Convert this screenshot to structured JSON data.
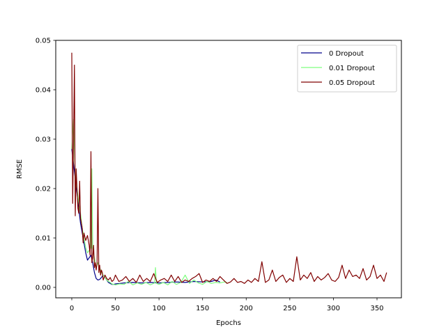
{
  "chart_data": {
    "type": "line",
    "title": "",
    "xlabel": "Epochs",
    "ylabel": "RMSE",
    "xlim": [
      -17,
      375
    ],
    "ylim": [
      -0.0025,
      0.05
    ],
    "xticks": [
      0,
      50,
      100,
      150,
      200,
      250,
      300,
      350
    ],
    "xtick_labels": [
      "0",
      "50",
      "100",
      "150",
      "200",
      "250",
      "300",
      "350"
    ],
    "yticks": [
      0.0,
      0.01,
      0.02,
      0.03,
      0.04,
      0.05
    ],
    "ytick_labels": [
      "0.00",
      "0.01",
      "0.02",
      "0.03",
      "0.04",
      "0.05"
    ],
    "grid": false,
    "legend_position": "upper right",
    "series": [
      {
        "name": "0 Dropout",
        "color": "#00008b",
        "x_range": [
          0,
          170
        ],
        "x": [
          0,
          2,
          4,
          6,
          8,
          10,
          12,
          14,
          16,
          18,
          20,
          22,
          24,
          26,
          28,
          30,
          32,
          34,
          36,
          38,
          40,
          42,
          44,
          46,
          48,
          50,
          55,
          60,
          70,
          80,
          90,
          100,
          110,
          120,
          130,
          140,
          150,
          160,
          165,
          170
        ],
        "values": [
          0.028,
          0.025,
          0.022,
          0.019,
          0.016,
          0.013,
          0.011,
          0.009,
          0.007,
          0.0055,
          0.006,
          0.0065,
          0.005,
          0.003,
          0.0018,
          0.0015,
          0.0016,
          0.002,
          0.0025,
          0.002,
          0.0015,
          0.001,
          0.0008,
          0.0006,
          0.0006,
          0.0007,
          0.0008,
          0.0009,
          0.001,
          0.0009,
          0.001,
          0.0009,
          0.001,
          0.0011,
          0.001,
          0.0012,
          0.0011,
          0.0012,
          0.0015,
          0.0011
        ]
      },
      {
        "name": "0.01 Dropout",
        "color": "#7fff7f",
        "x_range": [
          0,
          178
        ],
        "x": [
          0,
          2,
          4,
          6,
          8,
          10,
          12,
          14,
          16,
          18,
          20,
          22,
          23,
          24,
          26,
          28,
          30,
          32,
          34,
          36,
          38,
          40,
          42,
          44,
          46,
          48,
          50,
          55,
          60,
          65,
          70,
          75,
          80,
          85,
          90,
          95,
          96,
          97,
          100,
          105,
          110,
          115,
          120,
          125,
          130,
          135,
          140,
          145,
          150,
          155,
          160,
          165,
          170,
          175,
          178
        ],
        "values": [
          0.028,
          0.034,
          0.022,
          0.02,
          0.017,
          0.015,
          0.012,
          0.01,
          0.008,
          0.007,
          0.0075,
          0.008,
          0.024,
          0.008,
          0.006,
          0.004,
          0.005,
          0.004,
          0.003,
          0.0025,
          0.002,
          0.0015,
          0.0012,
          0.001,
          0.0007,
          0.0006,
          0.0005,
          0.0007,
          0.0006,
          0.0012,
          0.0005,
          0.0009,
          0.0006,
          0.001,
          0.0005,
          0.0009,
          0.004,
          0.0008,
          0.0006,
          0.001,
          0.0005,
          0.0012,
          0.0006,
          0.001,
          0.0025,
          0.0008,
          0.0015,
          0.0009,
          0.0006,
          0.0012,
          0.0008,
          0.001,
          0.0009,
          0.0011,
          0.001
        ]
      },
      {
        "name": "0.05 Dropout",
        "color": "#800000",
        "x_range": [
          0,
          361
        ],
        "x": [
          0,
          1,
          2,
          3,
          4,
          5,
          6,
          7,
          8,
          9,
          10,
          11,
          12,
          13,
          14,
          16,
          18,
          20,
          21,
          22,
          23,
          24,
          25,
          26,
          27,
          28,
          29,
          30,
          31,
          32,
          33,
          34,
          35,
          36,
          38,
          40,
          42,
          44,
          46,
          48,
          50,
          54,
          58,
          62,
          66,
          70,
          74,
          78,
          82,
          86,
          90,
          94,
          98,
          102,
          106,
          110,
          114,
          118,
          122,
          126,
          130,
          134,
          138,
          142,
          146,
          150,
          154,
          158,
          162,
          166,
          170,
          174,
          178,
          182,
          186,
          190,
          194,
          198,
          202,
          206,
          210,
          214,
          218,
          222,
          226,
          230,
          234,
          238,
          242,
          246,
          250,
          254,
          258,
          262,
          266,
          270,
          274,
          278,
          282,
          286,
          290,
          294,
          298,
          302,
          306,
          310,
          314,
          318,
          322,
          326,
          330,
          334,
          338,
          342,
          346,
          350,
          354,
          358,
          361
        ],
        "values": [
          0.0475,
          0.017,
          0.03,
          0.045,
          0.0145,
          0.024,
          0.02,
          0.016,
          0.015,
          0.0215,
          0.014,
          0.013,
          0.012,
          0.009,
          0.011,
          0.0095,
          0.0105,
          0.0085,
          0.0065,
          0.0275,
          0.005,
          0.006,
          0.0085,
          0.004,
          0.005,
          0.0035,
          0.0048,
          0.02,
          0.003,
          0.0045,
          0.0025,
          0.0035,
          0.003,
          0.0015,
          0.0025,
          0.0018,
          0.0015,
          0.002,
          0.0012,
          0.0015,
          0.0025,
          0.0012,
          0.0015,
          0.0022,
          0.0012,
          0.0018,
          0.001,
          0.0025,
          0.0012,
          0.0018,
          0.0012,
          0.0028,
          0.001,
          0.0015,
          0.0018,
          0.0012,
          0.0025,
          0.0012,
          0.0022,
          0.001,
          0.0015,
          0.0012,
          0.0018,
          0.0022,
          0.0028,
          0.001,
          0.0015,
          0.0012,
          0.0018,
          0.0012,
          0.0022,
          0.0015,
          0.0008,
          0.0011,
          0.0018,
          0.001,
          0.0012,
          0.0008,
          0.0015,
          0.001,
          0.0018,
          0.0012,
          0.0052,
          0.001,
          0.0015,
          0.0035,
          0.0012,
          0.002,
          0.0025,
          0.001,
          0.0018,
          0.0012,
          0.0062,
          0.0015,
          0.0025,
          0.0018,
          0.003,
          0.0012,
          0.0022,
          0.0015,
          0.002,
          0.0028,
          0.0015,
          0.0012,
          0.002,
          0.0045,
          0.0018,
          0.0035,
          0.0022,
          0.0025,
          0.0018,
          0.0038,
          0.0015,
          0.0022,
          0.0045,
          0.0018,
          0.0025,
          0.0012,
          0.003
        ]
      }
    ]
  },
  "legend": {
    "items": [
      {
        "label": "0 Dropout",
        "color": "#00008b"
      },
      {
        "label": "0.01 Dropout",
        "color": "#7fff7f"
      },
      {
        "label": "0.05 Dropout",
        "color": "#800000"
      }
    ]
  }
}
